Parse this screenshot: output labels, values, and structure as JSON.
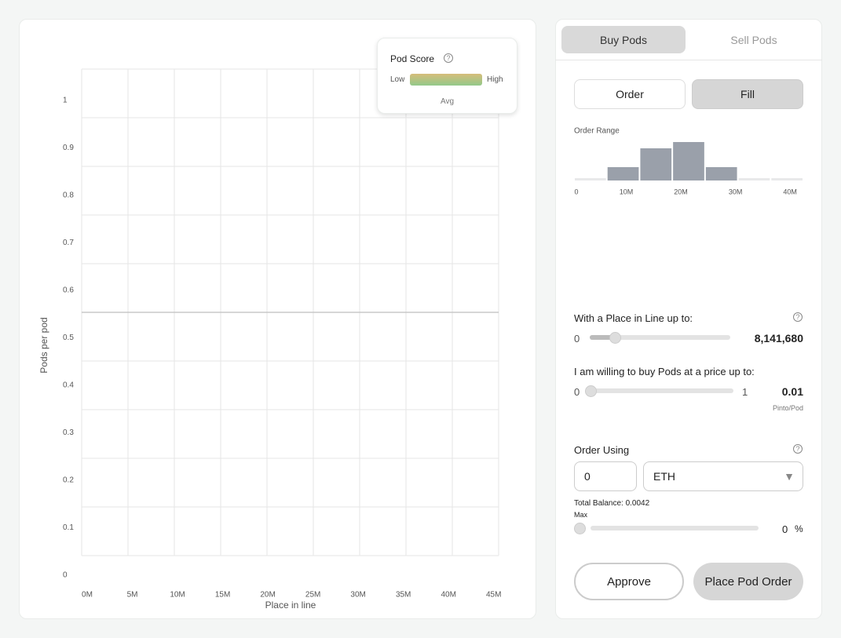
{
  "tabs": [
    "Buy Pods",
    "Sell Pods"
  ],
  "pod_score": {
    "title": "Pod Score",
    "low": "Low",
    "high": "High",
    "avg": "Avg"
  },
  "chart_data": {
    "type": "scatter",
    "x_label": "Place in line",
    "y_label": "Pods per pod",
    "xlim": [
      0,
      45
    ],
    "ylim": [
      0,
      1
    ],
    "xticks": [
      {
        "value": 0,
        "label": "0M"
      },
      {
        "value": 5,
        "label": "5M"
      },
      {
        "value": 10,
        "label": "10M"
      },
      {
        "value": 15,
        "label": "15M"
      },
      {
        "value": 20,
        "label": "20M"
      },
      {
        "value": 25,
        "label": "25M"
      },
      {
        "value": 30,
        "label": "30M"
      },
      {
        "value": 35,
        "label": "35M"
      },
      {
        "value": 40,
        "label": "40M"
      },
      {
        "value": 45,
        "label": "45M"
      }
    ],
    "yticks": [
      0,
      0.1,
      0.2,
      0.3,
      0.4,
      0.5,
      0.6,
      0.7,
      0.8,
      0.9,
      1
    ],
    "grid": true,
    "reference_line": 0.5
  },
  "mode_buttons": [
    "Order",
    "Fill"
  ],
  "order_range": {
    "type": "histogram",
    "title": "Order Range",
    "bins": [
      0,
      6,
      12,
      18,
      24,
      30,
      36,
      42
    ],
    "counts": [
      3,
      17,
      41,
      49,
      17,
      3,
      3
    ],
    "colors": [
      "#e8e9ea",
      "#9aa0aa",
      "#9aa0aa",
      "#9aa0aa",
      "#9aa0aa",
      "#e8e9ea",
      "#e8e9ea"
    ],
    "xlim": [
      0,
      42
    ],
    "xticks": [
      0,
      {
        "value": 10,
        "label": "10M"
      },
      {
        "value": 20,
        "label": "20M"
      },
      {
        "value": 30,
        "label": "30M"
      },
      {
        "value": 40,
        "label": "40M"
      }
    ]
  },
  "place_in_line": {
    "label": "With a Place in Line up to:",
    "min": "0",
    "value": "8,141,680"
  },
  "price": {
    "label": "I am willing to buy Pods at a price up to:",
    "min": "0",
    "max": "1",
    "value": "0.01",
    "unit": "Pinto/Pod"
  },
  "order_using": {
    "label": "Order Using",
    "amount": "0",
    "token": "ETH",
    "balance": "Total Balance: 0.0042",
    "max": "Max",
    "percent": "0",
    "percent_sign": "%"
  },
  "actions": [
    "Approve",
    "Place Pod Order"
  ]
}
